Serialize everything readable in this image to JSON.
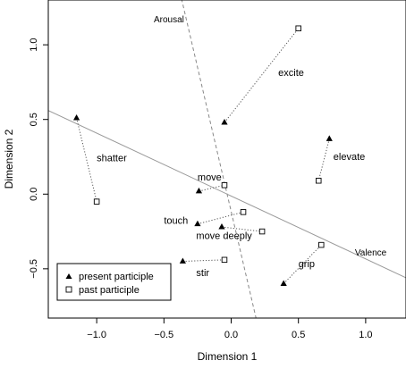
{
  "chart_data": {
    "type": "scatter",
    "xlabel": "Dimension 1",
    "ylabel": "Dimension 2",
    "xlim": [
      -1.36,
      1.3
    ],
    "ylim": [
      -0.83,
      1.3
    ],
    "xticks": [
      -1.0,
      -0.5,
      0.0,
      0.5,
      1.0
    ],
    "xtick_labels": [
      "−1.0",
      "−0.5",
      "0.0",
      "0.5",
      "1.0"
    ],
    "yticks": [
      -0.5,
      0.0,
      0.5,
      1.0
    ],
    "ytick_labels": [
      "−0.5",
      "0.0",
      "0.5",
      "1.0"
    ],
    "grid": false,
    "legend_position": "bottom-left",
    "series": [
      {
        "name": "present participle",
        "marker": "filled-triangle",
        "points": [
          {
            "label": "shatter",
            "x": -1.15,
            "y": 0.51
          },
          {
            "label": "excite",
            "x": -0.05,
            "y": 0.48
          },
          {
            "label": "elevate",
            "x": 0.73,
            "y": 0.37
          },
          {
            "label": "move",
            "x": -0.24,
            "y": 0.02
          },
          {
            "label": "touch",
            "x": -0.25,
            "y": -0.2
          },
          {
            "label": "move deeply",
            "x": -0.07,
            "y": -0.22
          },
          {
            "label": "stir",
            "x": -0.36,
            "y": -0.45
          },
          {
            "label": "grip",
            "x": 0.39,
            "y": -0.6
          }
        ]
      },
      {
        "name": "past participle",
        "marker": "open-square",
        "points": [
          {
            "label": "shatter",
            "x": -1.0,
            "y": -0.05
          },
          {
            "label": "excite",
            "x": 0.5,
            "y": 1.11
          },
          {
            "label": "elevate",
            "x": 0.65,
            "y": 0.09
          },
          {
            "label": "move",
            "x": -0.05,
            "y": 0.06
          },
          {
            "label": "touch",
            "x": 0.09,
            "y": -0.12
          },
          {
            "label": "move deeply",
            "x": 0.23,
            "y": -0.25
          },
          {
            "label": "stir",
            "x": -0.05,
            "y": -0.44
          },
          {
            "label": "grip",
            "x": 0.67,
            "y": -0.34
          }
        ]
      }
    ],
    "word_labels": [
      {
        "text": "shatter",
        "x": -1.0,
        "y": 0.22,
        "anchor": "start"
      },
      {
        "text": "excite",
        "x": 0.35,
        "y": 0.79,
        "anchor": "start"
      },
      {
        "text": "elevate",
        "x": 0.76,
        "y": 0.23,
        "anchor": "start"
      },
      {
        "text": "move",
        "x": -0.25,
        "y": 0.09,
        "anchor": "start"
      },
      {
        "text": "touch",
        "x": -0.5,
        "y": -0.2,
        "anchor": "start"
      },
      {
        "text": "move deeply",
        "x": -0.26,
        "y": -0.3,
        "anchor": "start"
      },
      {
        "text": "stir",
        "x": -0.26,
        "y": -0.55,
        "anchor": "start"
      },
      {
        "text": "grip",
        "x": 0.5,
        "y": -0.49,
        "anchor": "start"
      }
    ],
    "dimension_lines": [
      {
        "label": "Arousal",
        "style": "dashed",
        "color": "#888888",
        "p1": [
          -0.38,
          1.35
        ],
        "p2": [
          0.19,
          -0.85
        ],
        "label_pos": [
          -0.35,
          1.15
        ],
        "label_anchor": "end"
      },
      {
        "label": "Valence",
        "style": "solid",
        "color": "#999999",
        "p1": [
          -1.36,
          0.56
        ],
        "p2": [
          1.3,
          -0.56
        ],
        "label_pos": [
          0.92,
          -0.41
        ],
        "label_anchor": "start"
      }
    ]
  }
}
